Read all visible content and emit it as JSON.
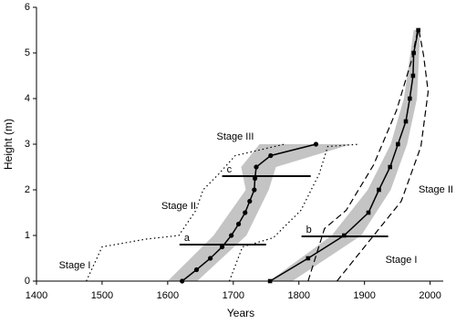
{
  "chart_data": {
    "type": "line",
    "x_label": "Years",
    "y_label": "Height (m)",
    "xlim": [
      1400,
      2020
    ],
    "ylim": [
      0,
      6
    ],
    "xticks": [
      1400,
      1500,
      1600,
      1700,
      1800,
      1900,
      2000
    ],
    "yticks": [
      0,
      1,
      2,
      3,
      4,
      5,
      6
    ],
    "bands": [
      {
        "color": "#c4c4c4",
        "values": [
          0,
          1,
          2,
          2.5,
          3
        ],
        "x_lower": [
          1600,
          1670,
          1719,
          1712,
          1740
        ],
        "x_upper": [
          1645,
          1720,
          1754,
          1765,
          1880
        ]
      },
      {
        "color": "#c4c4c4",
        "values": [
          0,
          1,
          2,
          3,
          4,
          5.5
        ],
        "x_lower": [
          1755,
          1850,
          1905,
          1940,
          1960,
          1975
        ],
        "x_upper": [
          1790,
          1895,
          1940,
          1965,
          1980,
          1985
        ]
      }
    ],
    "series": [
      {
        "color": "#000000",
        "style": "solid",
        "marker": "circle",
        "x": [
          1622,
          1644,
          1665,
          1683,
          1697,
          1708,
          1718,
          1725,
          1732,
          1733,
          1735,
          1757,
          1826
        ],
        "values": [
          0,
          0.25,
          0.5,
          0.75,
          1,
          1.25,
          1.5,
          1.75,
          2,
          2.25,
          2.5,
          2.75,
          3
        ]
      },
      {
        "color": "#000000",
        "style": "solid",
        "marker": "square",
        "x": [
          1756,
          1814,
          1869,
          1906,
          1922,
          1939,
          1951,
          1963,
          1969,
          1974,
          1975,
          1982
        ],
        "values": [
          0,
          0.5,
          1,
          1.5,
          2,
          2.5,
          3,
          3.5,
          4,
          4.5,
          5,
          5.5
        ]
      },
      {
        "color": "#000000",
        "style": "dotted",
        "x": [
          1476,
          1500,
          1567,
          1617,
          1643,
          1654,
          1678,
          1703,
          1778
        ],
        "values": [
          0,
          0.75,
          0.92,
          1,
          1.55,
          2,
          2.35,
          2.75,
          3
        ]
      },
      {
        "color": "#000000",
        "style": "dotted",
        "x": [
          1694,
          1714,
          1761,
          1803,
          1831,
          1844,
          1893
        ],
        "values": [
          0,
          0.75,
          0.95,
          1.55,
          2.35,
          2.95,
          3
        ]
      },
      {
        "color": "#000000",
        "style": "dashed",
        "x": [
          1814,
          1839,
          1872,
          1914,
          1949,
          1972,
          1981
        ],
        "values": [
          0,
          1.15,
          1.55,
          2.55,
          3.75,
          4.85,
          5.5
        ]
      },
      {
        "color": "#000000",
        "style": "dashed",
        "x": [
          1858,
          1956,
          1986,
          1997,
          1990,
          1983
        ],
        "values": [
          0,
          1.75,
          2.95,
          4.15,
          4.95,
          5.5
        ]
      }
    ],
    "segments": [
      {
        "label": "a",
        "y": 0.8,
        "x": [
          1618,
          1750
        ]
      },
      {
        "label": "b",
        "y": 0.98,
        "x": [
          1804,
          1936
        ]
      },
      {
        "label": "c",
        "y": 2.3,
        "x": [
          1683,
          1818
        ]
      }
    ],
    "annotations": [
      "Stage III",
      "Stage II",
      "Stage I",
      "Stage II",
      "Stage I"
    ]
  }
}
